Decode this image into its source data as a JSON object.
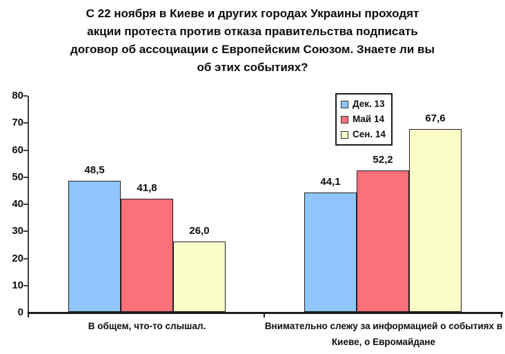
{
  "title": {
    "lines": [
      "С 22 ноября в Киеве и других городах Украины проходят",
      "акции протеста против отказа правительства подписать",
      "договор об ассоциации с Европейским Союзом. Знаете ли вы",
      "об этих событиях?"
    ]
  },
  "chart_data": {
    "type": "bar",
    "title": "С 22 ноября в Киеве и других городах Украины проходят акции протеста против отказа правительства подписать договор об ассоциации с Европейским Союзом. Знаете ли вы об этих событиях?",
    "categories": [
      "В общем, что-то слышал.",
      "Внимательно слежу за информацией о событиях в Киеве, о Евромайдане"
    ],
    "series": [
      {
        "name": "Дек. 13",
        "color": "#8EC6FC",
        "values": [
          48.5,
          44.1
        ],
        "value_labels": [
          "48,5",
          "44,1"
        ]
      },
      {
        "name": "Май 14",
        "color": "#FC707A",
        "values": [
          41.8,
          52.2
        ],
        "value_labels": [
          "41,8",
          "52,2"
        ]
      },
      {
        "name": "Сен. 14",
        "color": "#FBFDC9",
        "values": [
          26.0,
          67.6
        ],
        "value_labels": [
          "26,0",
          "67,6"
        ]
      }
    ],
    "ylim": [
      0,
      80
    ],
    "yticks": [
      0,
      10,
      20,
      30,
      40,
      50,
      60,
      70,
      80
    ],
    "grid": false,
    "legend_position": "top-right",
    "decimal_separator": ","
  },
  "colors": {
    "bar_border": "#1f1f1f",
    "axis_y": "#3f3f3f",
    "axis_x": "#1c1c1c",
    "text": "#0b0b0b",
    "background": "#ffffff"
  }
}
